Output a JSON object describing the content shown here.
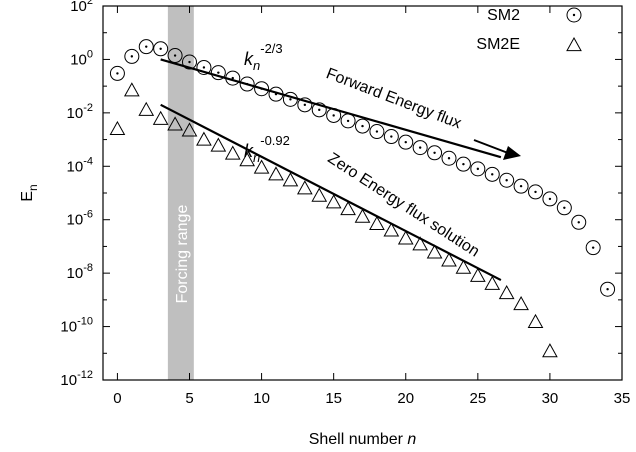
{
  "chart_data": {
    "type": "scatter",
    "xlabel_prefix": "Shell number ",
    "xlabel_var": "n",
    "ylabel_main": "E",
    "ylabel_sub": "n",
    "xlim": [
      -1,
      35
    ],
    "ylim_log10": [
      -12,
      2
    ],
    "log_y": true,
    "grid": false,
    "legend_position": "top-right",
    "x_ticks": [
      0,
      5,
      10,
      15,
      20,
      25,
      30,
      35
    ],
    "y_tick_exponents": [
      2,
      0,
      -2,
      -4,
      -6,
      -8,
      -10,
      -12
    ],
    "y_tick_base": "10",
    "forcing_band": {
      "x_range": [
        3.5,
        5.3
      ],
      "label": "Forcing range",
      "color": "#bfbfbf"
    },
    "series": [
      {
        "name": "SM2",
        "marker": "circle-dot",
        "x": [
          0,
          1,
          2,
          3,
          4,
          5,
          6,
          7,
          8,
          9,
          10,
          11,
          12,
          13,
          14,
          15,
          16,
          17,
          18,
          19,
          20,
          21,
          22,
          23,
          24,
          25,
          26,
          27,
          28,
          29,
          30,
          31,
          32,
          33,
          34
        ],
        "y": [
          0.3,
          1.3,
          3.0,
          2.5,
          1.4,
          0.8,
          0.5,
          0.32,
          0.2,
          0.12,
          0.08,
          0.05,
          0.032,
          0.02,
          0.013,
          0.008,
          0.005,
          0.0032,
          0.002,
          0.0013,
          0.0008,
          0.0005,
          0.00032,
          0.0002,
          0.00012,
          8e-05,
          5e-05,
          3e-05,
          1.8e-05,
          1.1e-05,
          6e-06,
          2.8e-06,
          8e-07,
          9e-08,
          2.5e-09
        ]
      },
      {
        "name": "SM2E",
        "marker": "triangle",
        "x": [
          0,
          1,
          2,
          3,
          4,
          5,
          6,
          7,
          8,
          9,
          10,
          11,
          12,
          13,
          14,
          15,
          16,
          17,
          18,
          19,
          20,
          21,
          22,
          23,
          24,
          25,
          26,
          27,
          28,
          29,
          30
        ],
        "y": [
          0.0025,
          0.07,
          0.013,
          0.006,
          0.0037,
          0.0022,
          0.001,
          0.0006,
          0.0003,
          0.00017,
          9e-05,
          5e-05,
          3e-05,
          1.5e-05,
          8e-06,
          4.5e-06,
          2.5e-06,
          1.3e-06,
          7e-07,
          4e-07,
          2e-07,
          1.2e-07,
          6e-08,
          3e-08,
          1.6e-08,
          8e-09,
          4e-09,
          1.8e-09,
          7e-10,
          1.5e-10,
          1.2e-11
        ]
      }
    ],
    "reference_lines": [
      {
        "name": "forward",
        "x": [
          3,
          26.6
        ],
        "y": [
          1.0,
          0.00022
        ]
      },
      {
        "name": "zero",
        "x": [
          3,
          26.6
        ],
        "y": [
          0.02,
          5.5e-09
        ]
      }
    ],
    "annotations": {
      "k_slope_1": {
        "base": "k",
        "sub": "n",
        "sup": "-2/3"
      },
      "k_slope_2": {
        "base": "k",
        "sub": "n",
        "sup": "-0.92"
      },
      "forward_label": "Forward Energy flux",
      "zero_label": "Zero Energy flux solution"
    }
  }
}
